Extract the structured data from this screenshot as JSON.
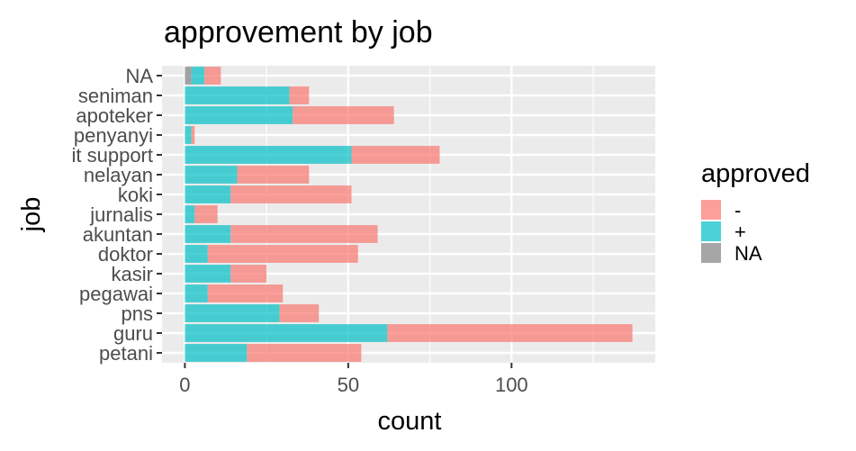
{
  "chart_data": {
    "type": "bar",
    "orientation": "horizontal",
    "stacked": true,
    "title": "approvement by job",
    "xlabel": "count",
    "ylabel": "job",
    "xlim": [
      -7,
      144
    ],
    "xticks": [
      0,
      50,
      100
    ],
    "grid": true,
    "legend": {
      "title": "approved",
      "placement": "right",
      "entries": [
        {
          "label": "-",
          "color": "#F8766D"
        },
        {
          "label": "+",
          "color": "#00BFC4"
        },
        {
          "label": "NA",
          "color": "#808080"
        }
      ]
    },
    "categories": [
      "NA",
      "seniman",
      "apoteker",
      "penyanyi",
      "it support",
      "nelayan",
      "koki",
      "jurnalis",
      "akuntan",
      "doktor",
      "kasir",
      "pegawai",
      "pns",
      "guru",
      "petani"
    ],
    "series": [
      {
        "name": "NA",
        "color": "#808080",
        "values": [
          2,
          0,
          0,
          0,
          0,
          0,
          0,
          0,
          0,
          0,
          0,
          0,
          0,
          0,
          0
        ]
      },
      {
        "name": "+",
        "color": "#00BFC4",
        "values": [
          4,
          32,
          33,
          2,
          51,
          16,
          14,
          3,
          14,
          7,
          14,
          7,
          29,
          62,
          19
        ]
      },
      {
        "name": "-",
        "color": "#F8766D",
        "values": [
          5,
          6,
          31,
          1,
          27,
          22,
          37,
          7,
          45,
          46,
          11,
          23,
          12,
          75,
          35
        ]
      }
    ]
  }
}
